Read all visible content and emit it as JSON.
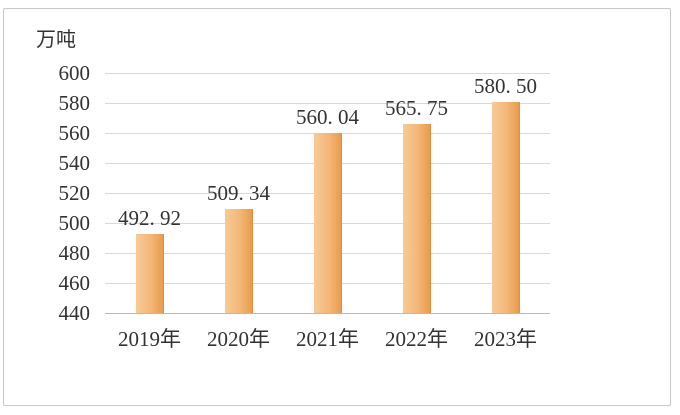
{
  "unit_label": "万吨",
  "chart_data": {
    "type": "bar",
    "title": "",
    "ylabel": "万吨",
    "xlabel": "",
    "categories": [
      "2019年",
      "2020年",
      "2021年",
      "2022年",
      "2023年"
    ],
    "values": [
      492.92,
      509.34,
      560.04,
      565.75,
      580.5
    ],
    "value_labels": [
      "492. 92",
      "509. 34",
      "560. 04",
      "565. 75",
      "580. 50"
    ],
    "ylim": [
      440,
      600
    ],
    "ytick_step": 20,
    "yticks": [
      440,
      460,
      480,
      500,
      520,
      540,
      560,
      580,
      600
    ],
    "grid": "horizontal-only",
    "legend": "none",
    "colors": {
      "bar_gradient_left": "#f8ca96",
      "bar_gradient_mid": "#f3b778",
      "bar_gradient_right": "#ea9b4c",
      "bar_right_edge": "#e18f3e",
      "gridline": "#d9d9d9",
      "axis_line": "#b9b9b9",
      "text": "#333333",
      "border": "#c9c9c9",
      "background": "#ffffff"
    }
  }
}
